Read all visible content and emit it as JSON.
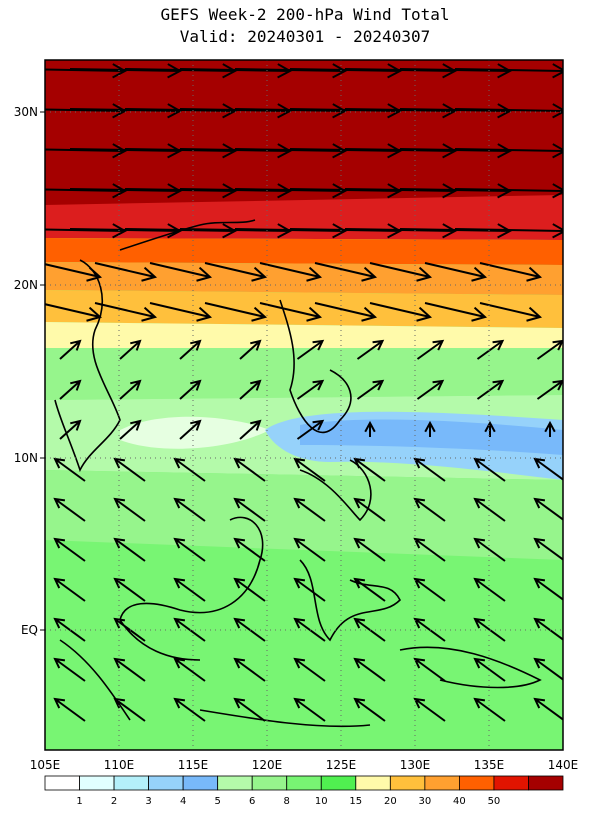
{
  "title": "GEFS Week-2 200-hPa Wind Total",
  "subtitle": "Valid: 20240301 - 20240307",
  "lat_labels": [
    "30N",
    "20N",
    "10N",
    "EQ"
  ],
  "lon_labels": [
    "105E",
    "110E",
    "115E",
    "120E",
    "125E",
    "130E",
    "135E",
    "140E"
  ],
  "colorbar": {
    "labels": [
      "1",
      "2",
      "3",
      "4",
      "5",
      "6",
      "8",
      "10",
      "15",
      "20",
      "30",
      "40",
      "50"
    ]
  }
}
